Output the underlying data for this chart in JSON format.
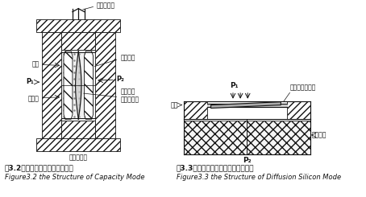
{
  "bg_color": "#ffffff",
  "fig_width": 4.54,
  "fig_height": 2.45,
  "caption_left_cn": "图3.2电容式差压传感器结构原理",
  "caption_left_en": "Figure3.2 the Structure of Capacity Mode",
  "caption_right_cn": "图3.3扩散硅式压力传感器结构原理图",
  "caption_right_en": "Figure3.3 the Structure of Diffusion Silicon Mode",
  "label_wire": "电容引出线",
  "label_fixed": "固定电极",
  "label_oil": "硅油",
  "label_P1L": "P₁",
  "label_P2R": "P₂",
  "label_iso": "隔离膜",
  "label_membrane": "测量膜片\n（动电极）",
  "label_weld": "焊接密封圈",
  "label_P1R": "P₁",
  "label_diffuse": "扩散式应变元件",
  "label_cup": "硅杯",
  "label_glass": "玻璃台座",
  "label_P2B": "P₂"
}
